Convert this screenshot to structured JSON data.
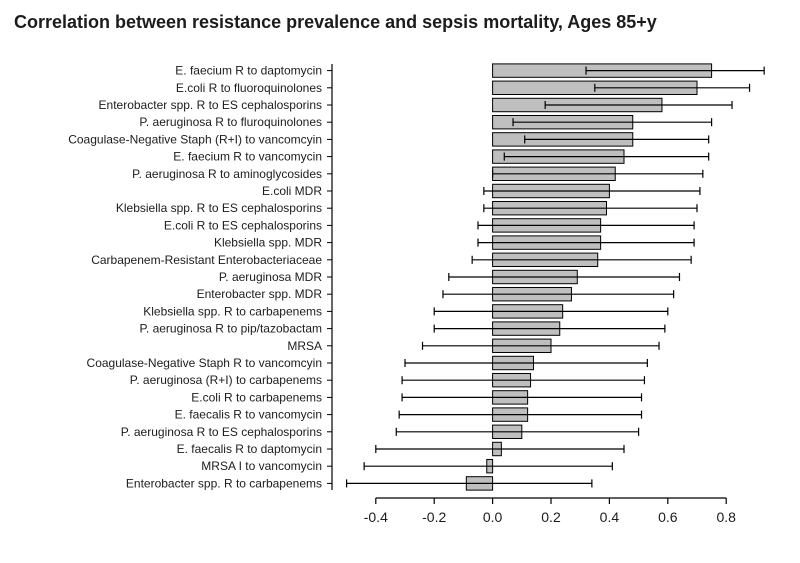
{
  "title": "Correlation between resistance prevalence and sepsis mortality, Ages 85+y",
  "title_fontsize": 18,
  "title_fontweight": "bold",
  "chart": {
    "type": "bar_with_error",
    "orientation": "horizontal",
    "background_color": "#ffffff",
    "plot_area_color": "#ffffff",
    "bar_fill": "#bfbfbf",
    "bar_stroke": "#000000",
    "bar_stroke_width": 1,
    "error_stroke": "#000000",
    "error_stroke_width": 1.2,
    "axis_color": "#000000",
    "axis_width": 1.2,
    "tick_length": 6,
    "row_label_fontsize": 12,
    "row_label_color": "#1c1c1c",
    "tick_label_fontsize": 14,
    "tick_label_color": "#1c1c1c",
    "xlim": [
      -0.55,
      0.95
    ],
    "xticks": [
      -0.4,
      -0.2,
      0.0,
      0.2,
      0.4,
      0.6,
      0.8
    ],
    "xtick_labels": [
      "-0.4",
      "-0.2",
      "0.0",
      "0.2",
      "0.4",
      "0.6",
      "0.8"
    ],
    "bar_rel_height": 0.78,
    "rows": [
      {
        "label": "E. faecium R to daptomycin",
        "value": 0.75,
        "lo": 0.32,
        "hi": 0.93
      },
      {
        "label": "E.coli R to fluoroquinolones",
        "value": 0.7,
        "lo": 0.35,
        "hi": 0.88
      },
      {
        "label": "Enterobacter spp. R to ES cephalosporins",
        "value": 0.58,
        "lo": 0.18,
        "hi": 0.82
      },
      {
        "label": "P. aeruginosa R to fluroquinolones",
        "value": 0.48,
        "lo": 0.07,
        "hi": 0.75
      },
      {
        "label": "Coagulase-Negative Staph (R+I) to vancomcyin",
        "value": 0.48,
        "lo": 0.11,
        "hi": 0.74
      },
      {
        "label": "E. faecium R to vancomycin",
        "value": 0.45,
        "lo": 0.04,
        "hi": 0.74
      },
      {
        "label": "P. aeruginosa R to aminoglycosides",
        "value": 0.42,
        "lo": 0.0,
        "hi": 0.72
      },
      {
        "label": "E.coli MDR",
        "value": 0.4,
        "lo": -0.03,
        "hi": 0.71
      },
      {
        "label": "Klebsiella spp. R to ES cephalosporins",
        "value": 0.39,
        "lo": -0.03,
        "hi": 0.7
      },
      {
        "label": "E.coli R to ES cephalosporins",
        "value": 0.37,
        "lo": -0.05,
        "hi": 0.69
      },
      {
        "label": "Klebsiella spp. MDR",
        "value": 0.37,
        "lo": -0.05,
        "hi": 0.69
      },
      {
        "label": "Carbapenem-Resistant Enterobacteriaceae",
        "value": 0.36,
        "lo": -0.07,
        "hi": 0.68
      },
      {
        "label": "P. aeruginosa MDR",
        "value": 0.29,
        "lo": -0.15,
        "hi": 0.64
      },
      {
        "label": "Enterobacter spp. MDR",
        "value": 0.27,
        "lo": -0.17,
        "hi": 0.62
      },
      {
        "label": "Klebsiella spp. R to carbapenems",
        "value": 0.24,
        "lo": -0.2,
        "hi": 0.6
      },
      {
        "label": "P. aeruginosa R to pip/tazobactam",
        "value": 0.23,
        "lo": -0.2,
        "hi": 0.59
      },
      {
        "label": "MRSA",
        "value": 0.2,
        "lo": -0.24,
        "hi": 0.57
      },
      {
        "label": "Coagulase-Negative Staph R to vancomcyin",
        "value": 0.14,
        "lo": -0.3,
        "hi": 0.53
      },
      {
        "label": "P. aeruginosa (R+I) to carbapenems",
        "value": 0.13,
        "lo": -0.31,
        "hi": 0.52
      },
      {
        "label": "E.coli R to carbapenems",
        "value": 0.12,
        "lo": -0.31,
        "hi": 0.51
      },
      {
        "label": "E. faecalis R to vancomycin",
        "value": 0.12,
        "lo": -0.32,
        "hi": 0.51
      },
      {
        "label": "P. aeruginosa R to ES cephalosporins",
        "value": 0.1,
        "lo": -0.33,
        "hi": 0.5
      },
      {
        "label": "E. faecalis R to daptomycin",
        "value": 0.03,
        "lo": -0.4,
        "hi": 0.45
      },
      {
        "label": "MRSA I to vancomycin",
        "value": -0.02,
        "lo": -0.44,
        "hi": 0.41
      },
      {
        "label": "Enterobacter spp. R to carbapenems",
        "value": -0.09,
        "lo": -0.5,
        "hi": 0.34
      }
    ]
  }
}
